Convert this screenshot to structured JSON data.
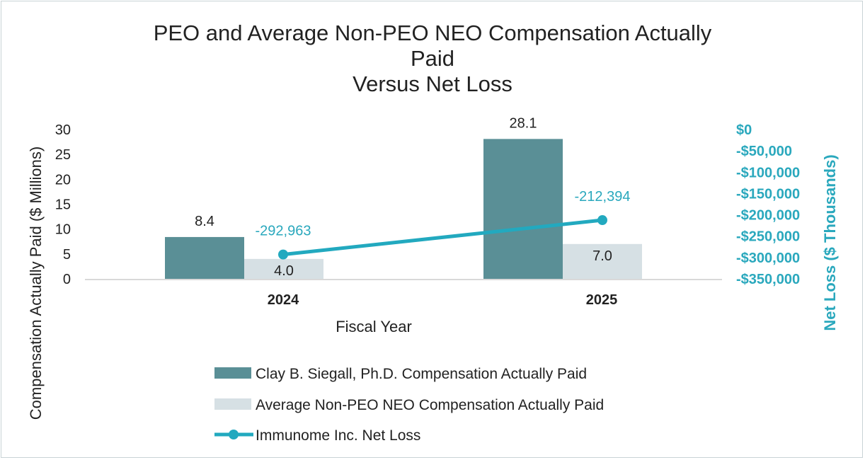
{
  "chart_data": {
    "type": "bar",
    "title_lines": [
      "PEO and Average Non-PEO NEO Compensation Actually",
      "Paid",
      "Versus Net Loss"
    ],
    "xlabel": "Fiscal Year",
    "ylabel": "Compensation Actually Paid ($ Millions)",
    "y2label": "Net Loss ($ Thousands)",
    "categories": [
      "2024",
      "2025"
    ],
    "ylim": [
      0,
      30
    ],
    "yticks": [
      "0",
      "5",
      "10",
      "15",
      "20",
      "25",
      "30"
    ],
    "y2lim": [
      -350000,
      0
    ],
    "y2ticks": [
      "$0",
      "-$50,000",
      "-$100,000",
      "-$150,000",
      "-$200,000",
      "-$250,000",
      "-$300,000",
      "-$350,000"
    ],
    "series": [
      {
        "name": "Clay B. Siegall, Ph.D. Compensation Actually Paid",
        "kind": "bar",
        "axis": "left",
        "values": [
          8.4,
          28.1
        ],
        "labels": [
          "8.4",
          "28.1"
        ],
        "color": "#5a8f96"
      },
      {
        "name": "Average Non-PEO NEO Compensation Actually Paid",
        "kind": "bar",
        "axis": "left",
        "values": [
          4.0,
          7.0
        ],
        "labels": [
          "4.0",
          "7.0"
        ],
        "color": "#d6e0e4"
      },
      {
        "name": "Immunome Inc. Net Loss",
        "kind": "line",
        "axis": "right",
        "values": [
          -292963,
          -212394
        ],
        "labels": [
          "-292,963",
          "-212,394"
        ],
        "color": "#22a9bf"
      }
    ],
    "legend_position": "bottom",
    "grid": false
  }
}
